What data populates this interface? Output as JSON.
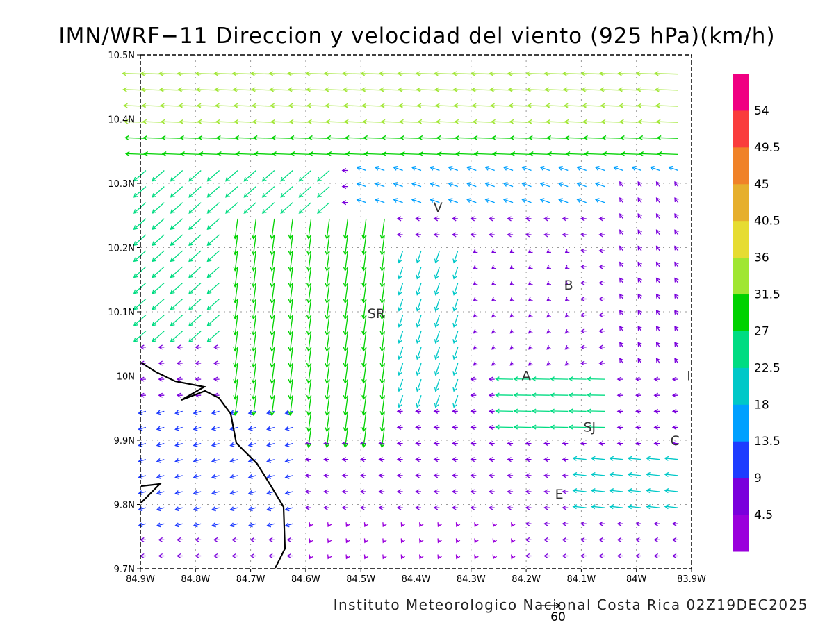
{
  "title": "IMN/WRF−11 Direccion y velocidad del viento (925 hPa)(km/h)",
  "credit": "Instituto Meteorologico Nacional Costa Rica 02Z19DEC2025",
  "reference_vector_label": "60",
  "map": {
    "lon_range": [
      -84.9,
      -83.9
    ],
    "lat_range": [
      9.7,
      10.5
    ],
    "lon_ticks": [
      "84.9W",
      "84.8W",
      "84.7W",
      "84.6W",
      "84.5W",
      "84.4W",
      "84.3W",
      "84.2W",
      "84.1W",
      "84W",
      "83.9W"
    ],
    "lat_ticks": [
      "9.7N",
      "9.8N",
      "9.9N",
      "10N",
      "10.1N",
      "10.2N",
      "10.3N",
      "10.4N",
      "10.5N"
    ],
    "grid": "dotted",
    "coastline_color": "#000000"
  },
  "places": [
    {
      "label": "V",
      "lon": -84.36,
      "lat": 10.263
    },
    {
      "label": "B",
      "lon": -84.123,
      "lat": 10.142
    },
    {
      "label": "SR",
      "lon": -84.472,
      "lat": 10.098
    },
    {
      "label": "A",
      "lon": -84.2,
      "lat": 10.001
    },
    {
      "label": "I",
      "lon": -83.905,
      "lat": 10.001
    },
    {
      "label": "SJ",
      "lon": -84.085,
      "lat": 9.921
    },
    {
      "label": "C",
      "lon": -83.93,
      "lat": 9.9
    },
    {
      "label": "E",
      "lon": -84.14,
      "lat": 9.817
    }
  ],
  "colorbar": {
    "labels": [
      "4.5",
      "9",
      "13.5",
      "18",
      "22.5",
      "27",
      "31.5",
      "36",
      "40.5",
      "45",
      "49.5",
      "54"
    ],
    "colors": [
      "#9a00dc",
      "#7a00dc",
      "#1e3cff",
      "#00a0ff",
      "#00c8c8",
      "#00dc82",
      "#00d200",
      "#a0e632",
      "#e6dc32",
      "#e6af2d",
      "#f08228",
      "#fa3c3c",
      "#f00082"
    ]
  }
}
